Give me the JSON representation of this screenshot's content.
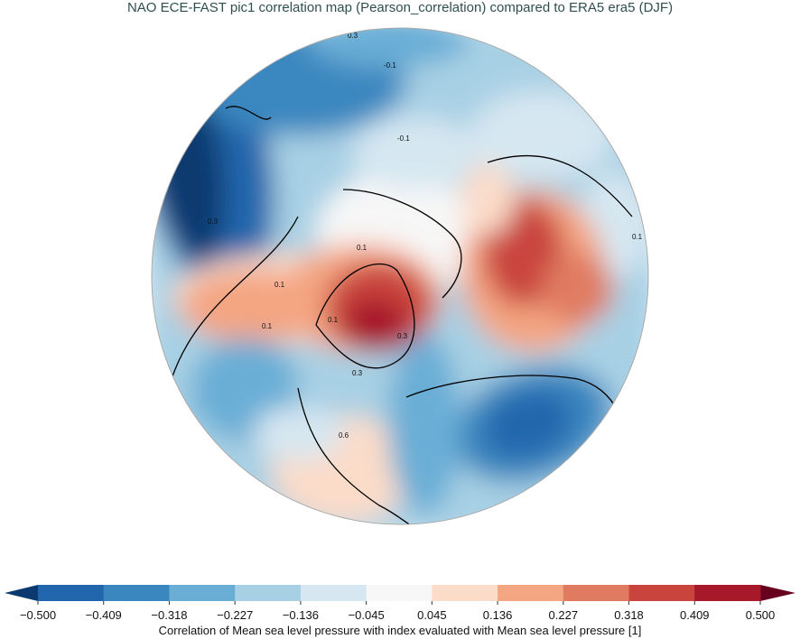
{
  "chart_data": {
    "type": "heatmap",
    "title": "NAO ECE-FAST pic1 correlation map (Pearson_correlation) compared to ERA5 era5 (DJF)",
    "projection": "north-polar-stereographic",
    "colorbar": {
      "label": "Correlation of Mean sea level pressure with index evaluated with Mean sea level pressure [1]",
      "ticks": [
        "-0.500",
        "-0.409",
        "-0.318",
        "-0.227",
        "-0.136",
        "-0.045",
        "0.045",
        "0.136",
        "0.227",
        "0.318",
        "0.409",
        "0.500"
      ],
      "range": [
        -0.5,
        0.5
      ],
      "extend": "both",
      "colors": [
        "#2166ac",
        "#3a87c0",
        "#6aaed6",
        "#a8d0e4",
        "#d6e7f1",
        "#f7f7f7",
        "#fbdcc9",
        "#f4a582",
        "#e07b62",
        "#c9443c",
        "#a7182b"
      ],
      "under_color": "#0b3a70",
      "over_color": "#67001f"
    },
    "contour_labels": [
      "0.3",
      "-0.1",
      "-0.1",
      "0.1",
      "0.1",
      "0.1",
      "0.3",
      "0.1",
      "0.3",
      "0.3",
      "0.6",
      "0.1"
    ]
  }
}
